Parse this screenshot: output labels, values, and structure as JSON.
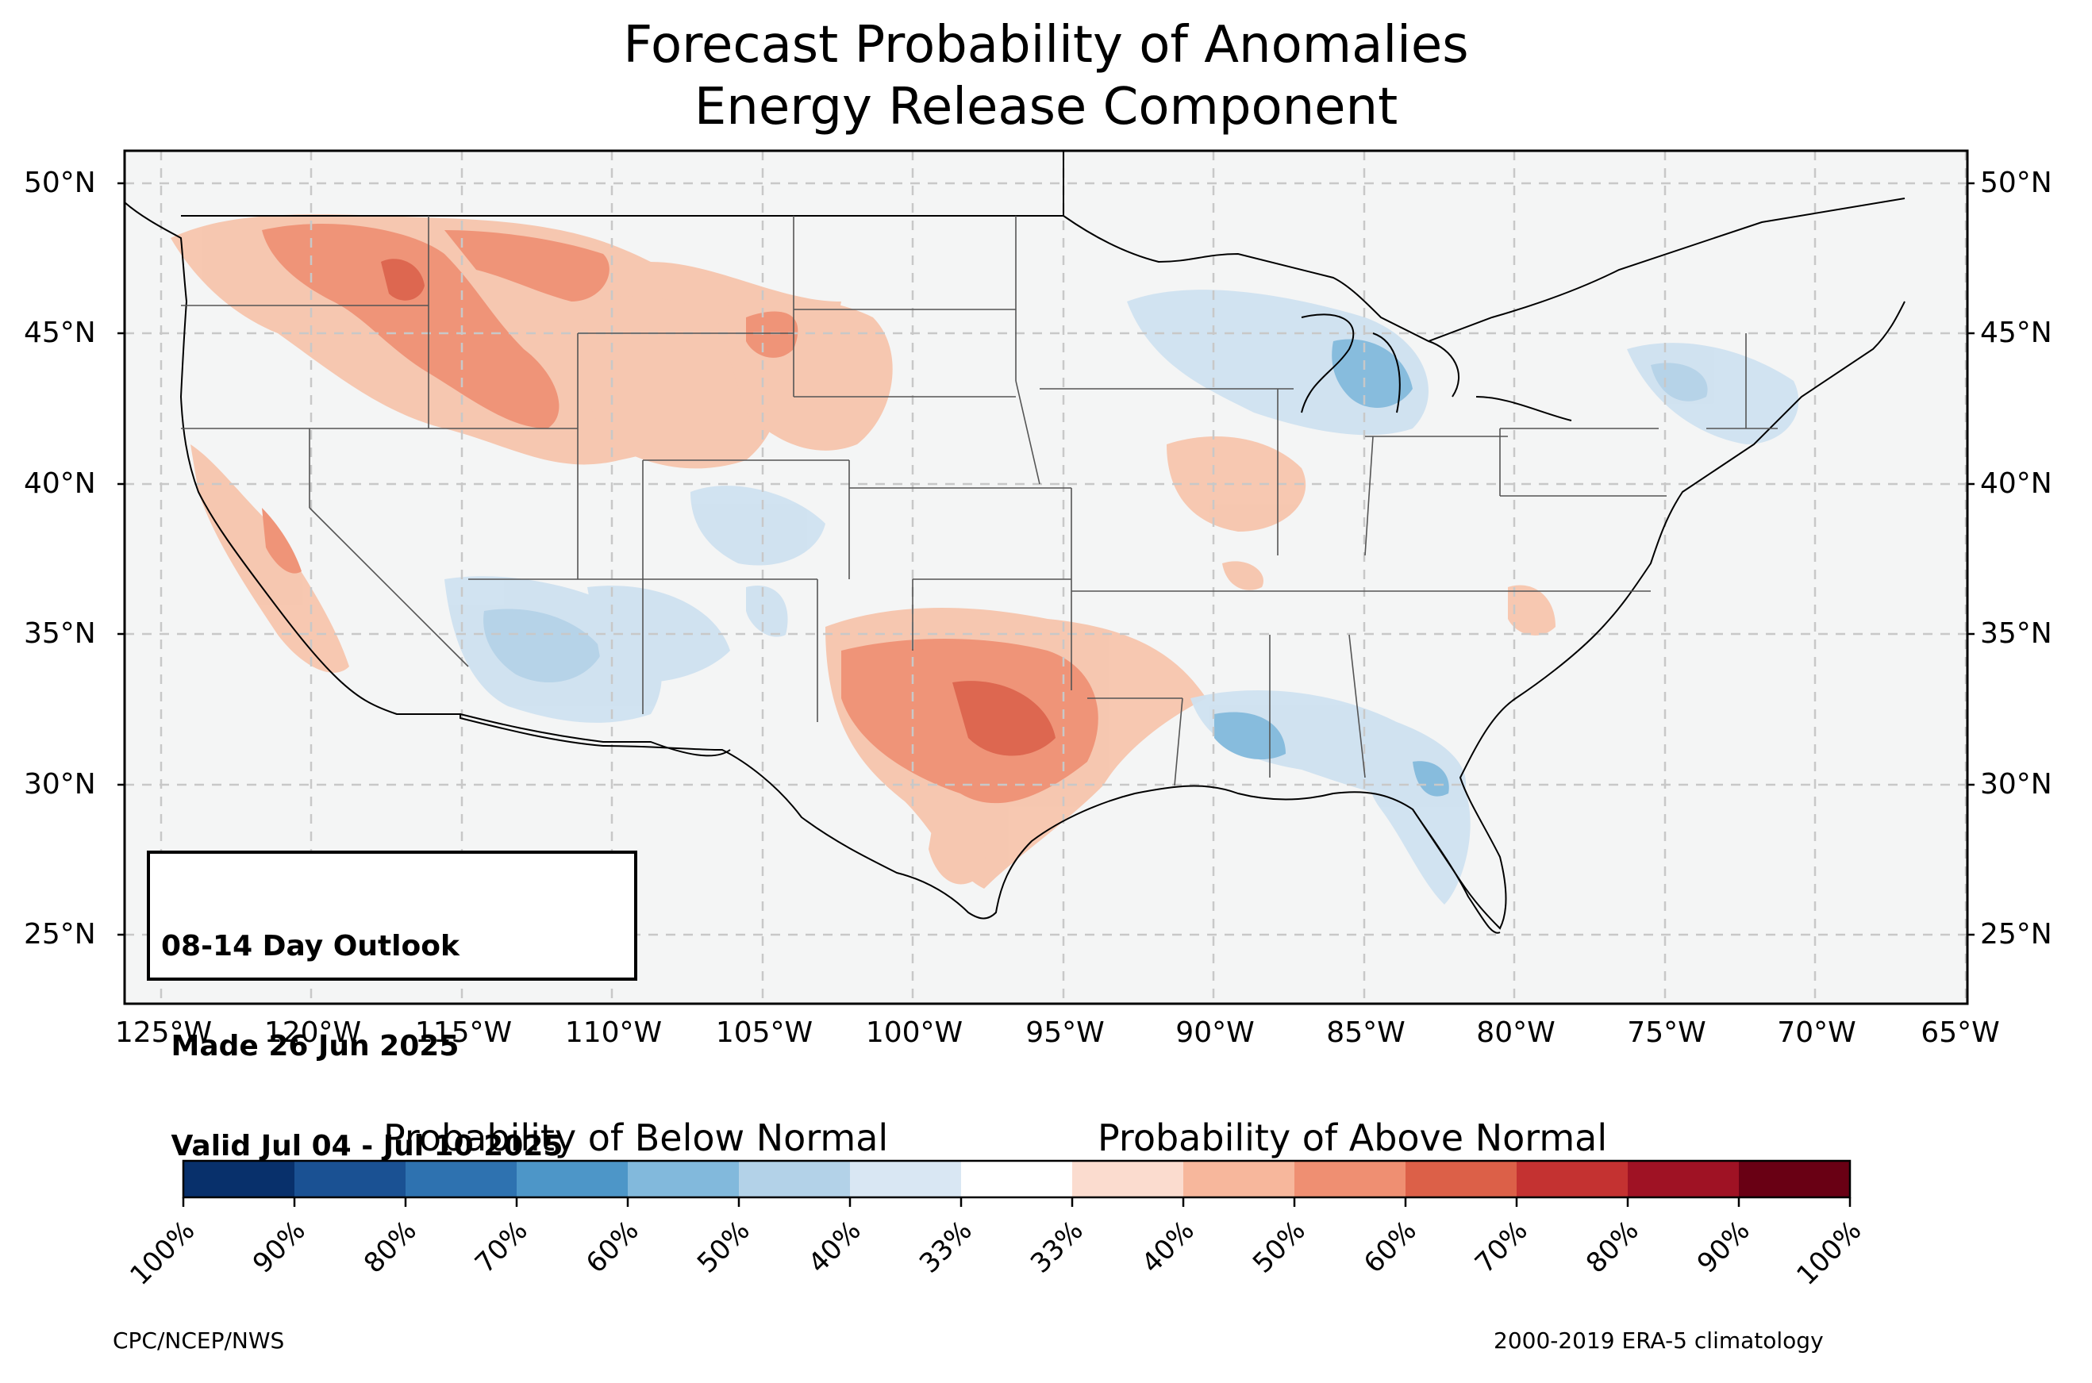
{
  "title": {
    "line1": "Forecast Probability of Anomalies",
    "line2": "Energy Release Component"
  },
  "map": {
    "lat_labels": [
      "50°N",
      "45°N",
      "40°N",
      "35°N",
      "30°N",
      "25°N"
    ],
    "lon_labels": [
      "125°W",
      "120°W",
      "115°W",
      "110°W",
      "105°W",
      "100°W",
      "95°W",
      "90°W",
      "85°W",
      "80°W",
      "75°W",
      "70°W",
      "65°W"
    ],
    "gridlines": "dashed",
    "background_color": "#f4f5f5",
    "above_regions": [
      {
        "name": "Pacific Northwest / Idaho",
        "level": "40-60%"
      },
      {
        "name": "Montana",
        "level": "40-50%"
      },
      {
        "name": "Wyoming / Nebraska Panhandle",
        "level": "40-50%"
      },
      {
        "name": "South Dakota",
        "level": "40-50%"
      },
      {
        "name": "California",
        "level": "33-50%"
      },
      {
        "name": "Texas / Oklahoma / Arkansas",
        "level": "40-70%"
      },
      {
        "name": "Illinois / Indiana",
        "level": "33-50%"
      },
      {
        "name": "Virginia / North Carolina",
        "level": "33-40%"
      }
    ],
    "below_regions": [
      {
        "name": "Arizona / New Mexico",
        "level": "33-50%"
      },
      {
        "name": "Colorado",
        "level": "33-50%"
      },
      {
        "name": "Michigan / Great Lakes",
        "level": "33-60%"
      },
      {
        "name": "New York / New England",
        "level": "33-50%"
      },
      {
        "name": "Mississippi / Alabama",
        "level": "33-60%"
      },
      {
        "name": "Georgia / Florida",
        "level": "33-60%"
      }
    ]
  },
  "outlook": {
    "line1": "08-14 Day Outlook",
    "line2": " Made 26 Jun 2025",
    "line3": " Valid Jul 04 - Jul 10 2025"
  },
  "colorbar": {
    "below_label": "Probability of Below Normal",
    "above_label": "Probability of Above Normal",
    "colors": [
      "#08306b",
      "#1a5193",
      "#2e72b0",
      "#4d96c8",
      "#82b9dc",
      "#b3d2e8",
      "#d9e7f3",
      "#ffffff",
      "#fbdccf",
      "#f7b79c",
      "#ef8f72",
      "#dc6048",
      "#c43231",
      "#9f1224",
      "#690014"
    ],
    "ticks": [
      "100%",
      "90%",
      "80%",
      "70%",
      "60%",
      "50%",
      "40%",
      "33%",
      "33%",
      "40%",
      "50%",
      "60%",
      "70%",
      "80%",
      "90%",
      "100%"
    ]
  },
  "footer": {
    "left": "CPC/NCEP/NWS",
    "right": "2000-2019 ERA-5 climatology"
  }
}
